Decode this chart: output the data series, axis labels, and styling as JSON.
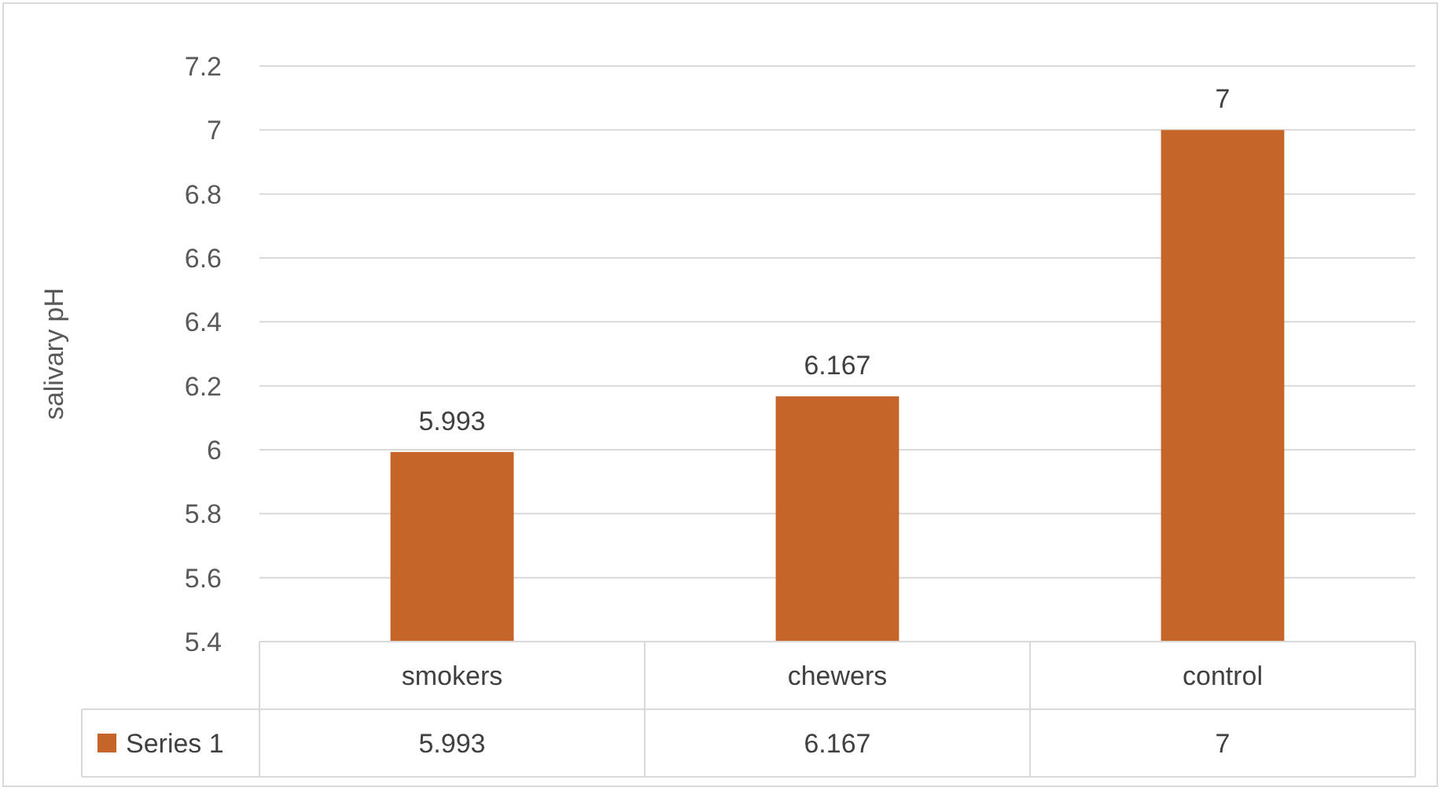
{
  "chart_data": {
    "type": "bar",
    "ylabel": "salivary pH",
    "categories": [
      "smokers",
      "chewers",
      "control"
    ],
    "series": [
      {
        "name": "Series 1",
        "color": "#c5652a",
        "values": [
          5.993,
          6.167,
          7
        ]
      }
    ],
    "annotations": [
      "5.993",
      "6.167",
      "7"
    ],
    "ylim": [
      5.4,
      7.2
    ],
    "yticks": [
      5.4,
      5.6,
      5.8,
      6,
      6.2,
      6.4,
      6.6,
      6.8,
      7,
      7.2
    ],
    "grid": "y",
    "data_labels": true,
    "legend": "bottom"
  }
}
